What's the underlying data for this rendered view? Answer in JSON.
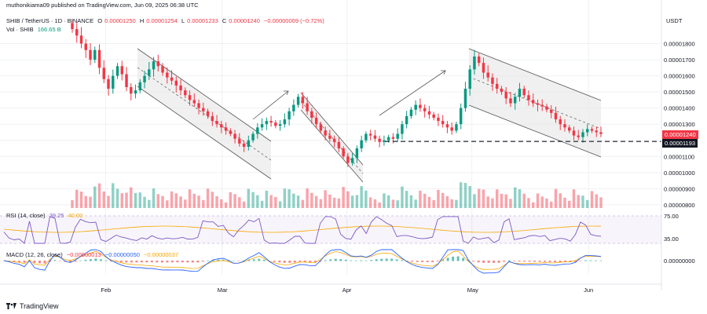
{
  "publisher": "muthonikiama09 published on TradingView.com, Jun 09, 2025 06:38 UTC",
  "symbol_line": {
    "symbol": "SHIB / TetherUS · 1D · BINANCE",
    "open_label": "O",
    "open": "0.00001250",
    "high_label": "H",
    "high": "0.00001254",
    "low_label": "L",
    "low": "0.00001233",
    "close_label": "C",
    "close": "0.00001240",
    "change": "−0.00000009 (−0.72%)"
  },
  "volume_line": {
    "label": "Vol · SHIB",
    "value": "166.65 B"
  },
  "currency": "USDT",
  "rsi_line": {
    "label": "RSI (14, close)",
    "rsi": "39.25",
    "ma": "40.00"
  },
  "macd_line": {
    "label": "MACD (12, 26, close)",
    "hist": "−0.00000013",
    "macd": "−0.00000050",
    "signal": "−0.00000037"
  },
  "price_tags": {
    "last": "0.00001240",
    "level": "0.00001193"
  },
  "footer_logo": "TradingView",
  "colors": {
    "up": "#089981",
    "down": "#f23645",
    "rsi": "#7e57c2",
    "ma": "#f7a600",
    "macd": "#2962ff"
  },
  "chart_data": {
    "type": "candlestick",
    "x_ticks": [
      "Feb",
      "Mar",
      "Apr",
      "May",
      "Jun"
    ],
    "y_ticks": [
      "0.00001800",
      "0.00001700",
      "0.00001600",
      "0.00001500",
      "0.00001400",
      "0.00001300",
      "0.00001200",
      "0.00001100",
      "0.00001000",
      "0.00000900",
      "0.00000800"
    ],
    "ylim": [
      7.8e-06,
      1.9e-05
    ],
    "horizontal_level": 1.193e-05,
    "rsi_ticks": [
      "75.00",
      "35.00"
    ],
    "macd_ticks": [
      "0.00000000"
    ],
    "closes": [
      1.89e-05,
      1.85e-05,
      1.8e-05,
      1.76e-05,
      1.7e-05,
      1.76e-05,
      1.65e-05,
      1.58e-05,
      1.52e-05,
      1.6e-05,
      1.66e-05,
      1.61e-05,
      1.53e-05,
      1.49e-05,
      1.51e-05,
      1.56e-05,
      1.6e-05,
      1.64e-05,
      1.69e-05,
      1.66e-05,
      1.62e-05,
      1.59e-05,
      1.57e-05,
      1.54e-05,
      1.51e-05,
      1.48e-05,
      1.45e-05,
      1.43e-05,
      1.4e-05,
      1.38e-05,
      1.35e-05,
      1.32e-05,
      1.3e-05,
      1.28e-05,
      1.26e-05,
      1.24e-05,
      1.21e-05,
      1.18e-05,
      1.16e-05,
      1.2e-05,
      1.24e-05,
      1.28e-05,
      1.3e-05,
      1.32e-05,
      1.31e-05,
      1.29e-05,
      1.3e-05,
      1.33e-05,
      1.38e-05,
      1.42e-05,
      1.47e-05,
      1.43e-05,
      1.38e-05,
      1.34e-05,
      1.3e-05,
      1.26e-05,
      1.23e-05,
      1.21e-05,
      1.19e-05,
      1.15e-05,
      1.1e-05,
      1.06e-05,
      1.09e-05,
      1.15e-05,
      1.2e-05,
      1.24e-05,
      1.23e-05,
      1.21e-05,
      1.19e-05,
      1.2e-05,
      1.22e-05,
      1.21e-05,
      1.24e-05,
      1.3e-05,
      1.35e-05,
      1.39e-05,
      1.42e-05,
      1.4e-05,
      1.38e-05,
      1.36e-05,
      1.34e-05,
      1.32e-05,
      1.3e-05,
      1.28e-05,
      1.26e-05,
      1.3e-05,
      1.4e-05,
      1.52e-05,
      1.64e-05,
      1.72e-05,
      1.68e-05,
      1.62e-05,
      1.59e-05,
      1.55e-05,
      1.52e-05,
      1.5e-05,
      1.46e-05,
      1.43e-05,
      1.47e-05,
      1.52e-05,
      1.48e-05,
      1.45e-05,
      1.43e-05,
      1.42e-05,
      1.41e-05,
      1.39e-05,
      1.37e-05,
      1.33e-05,
      1.3e-05,
      1.28e-05,
      1.26e-05,
      1.23e-05,
      1.22e-05,
      1.25e-05,
      1.27e-05,
      1.26e-05,
      1.25e-05,
      1.24e-05
    ]
  }
}
